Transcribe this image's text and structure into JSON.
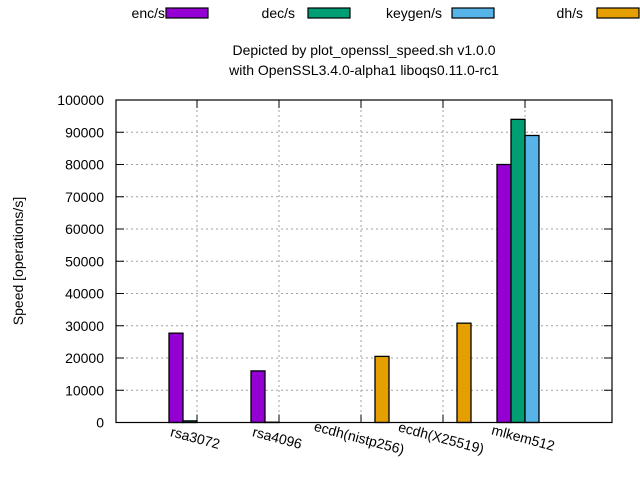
{
  "chart_data": {
    "type": "bar",
    "title": [
      "Depicted by plot_openssl_speed.sh v1.0.0",
      "with OpenSSL3.4.0-alpha1 liboqs0.11.0-rc1"
    ],
    "xlabel": "",
    "ylabel": "Speed [operations/s]",
    "ylim": [
      0,
      100000
    ],
    "yticks": [
      0,
      10000,
      20000,
      30000,
      40000,
      50000,
      60000,
      70000,
      80000,
      90000,
      100000
    ],
    "grid": true,
    "legend_position": "top",
    "categories": [
      "rsa3072",
      "rsa4096",
      "ecdh(nistp256)",
      "ecdh(X25519)",
      "mlkem512"
    ],
    "series": [
      {
        "name": "enc/s",
        "color": "#9400d3",
        "values": [
          27700,
          16000,
          0,
          0,
          80000
        ]
      },
      {
        "name": "dec/s",
        "color": "#009e73",
        "values": [
          500,
          100,
          0,
          0,
          94000
        ]
      },
      {
        "name": "keygen/s",
        "color": "#56b4e9",
        "values": [
          0,
          0,
          0,
          0,
          89000
        ]
      },
      {
        "name": "dh/s",
        "color": "#e69f00",
        "values": [
          0,
          0,
          20500,
          30800,
          0
        ]
      }
    ]
  }
}
